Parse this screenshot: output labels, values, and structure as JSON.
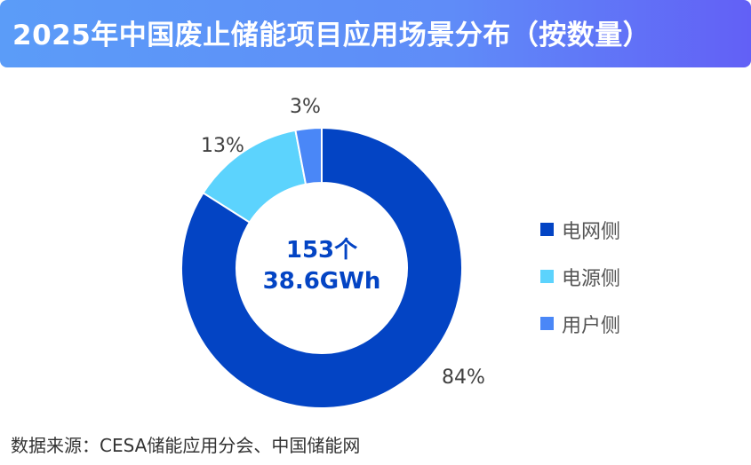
{
  "title": "2025年中国废止储能项目应用场景分布（按数量）",
  "chart_data": {
    "type": "pie",
    "variant": "donut",
    "title": "2025年中国废止储能项目应用场景分布（按数量）",
    "center_text": [
      "153个",
      "38.6GWh"
    ],
    "categories": [
      "电网侧",
      "电源侧",
      "用户侧"
    ],
    "values": [
      84,
      13,
      3
    ],
    "labels": [
      "84%",
      "13%",
      "3%"
    ],
    "colors": [
      "#0344c4",
      "#5cd3fd",
      "#4a87f7"
    ],
    "legend_position": "right"
  },
  "source": "数据来源：CESA储能应用分会、中国储能网"
}
